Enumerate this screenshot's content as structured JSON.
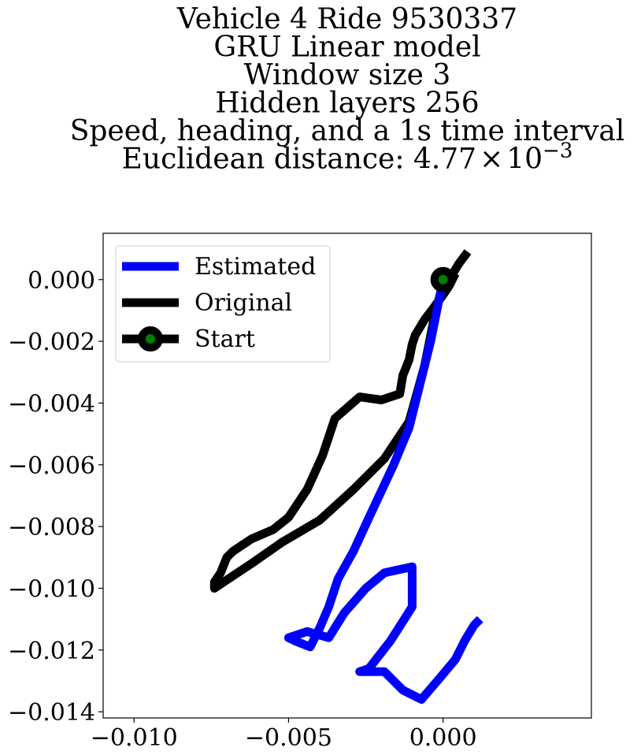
{
  "chart_data": {
    "type": "line",
    "title_lines": [
      "Vehicle 4 Ride 9530337",
      "GRU Linear model",
      "Window size 3",
      "Hidden layers 256",
      "Speed, heading, and a 1s time interval"
    ],
    "title_distance_prefix": "Euclidean distance: 4.77",
    "title_distance_times": "×",
    "title_distance_base": "10",
    "title_distance_exp": "−3",
    "xlim": [
      -0.011,
      0.0048
    ],
    "ylim": [
      -0.0142,
      0.0015
    ],
    "xticks": [
      -0.01,
      -0.005,
      0.0
    ],
    "xtick_labels": [
      "−0.010",
      "−0.005",
      "0.000"
    ],
    "yticks": [
      0.0,
      -0.002,
      -0.004,
      -0.006,
      -0.008,
      -0.01,
      -0.012,
      -0.014
    ],
    "ytick_labels": [
      "0.000",
      "−0.002",
      "−0.004",
      "−0.006",
      "−0.008",
      "−0.010",
      "−0.012",
      "−0.014"
    ],
    "grid": false,
    "legend_placement": "upper-left",
    "series": [
      {
        "name": "Estimated",
        "color": "#0000ff",
        "x": [
          0.0,
          -0.0004,
          -0.0011,
          -0.0016,
          -0.0023,
          -0.0029,
          -0.0034,
          -0.0037,
          -0.004,
          -0.0043,
          -0.0048,
          -0.005,
          -0.0044,
          -0.0037,
          -0.0032,
          -0.0025,
          -0.0019,
          -0.001,
          -0.001,
          -0.0017,
          -0.0024,
          -0.0027,
          -0.0019,
          -0.0013,
          -0.0007,
          -0.0001,
          0.0004,
          0.0007,
          0.001,
          0.0012
        ],
        "y": [
          0.0,
          -0.002,
          -0.0048,
          -0.006,
          -0.0075,
          -0.0088,
          -0.0097,
          -0.0106,
          -0.0113,
          -0.0119,
          -0.0117,
          -0.0116,
          -0.0114,
          -0.0116,
          -0.0108,
          -0.01,
          -0.0095,
          -0.0093,
          -0.0106,
          -0.0117,
          -0.0126,
          -0.0127,
          -0.0127,
          -0.0133,
          -0.0136,
          -0.0129,
          -0.0123,
          -0.0117,
          -0.0112,
          -0.011
        ]
      },
      {
        "name": "Original",
        "color": "#000000",
        "x": [
          0.0008,
          0.0005,
          0.0002,
          -0.0001,
          -0.0003,
          -0.0006,
          -0.0011,
          -0.0019,
          -0.0029,
          -0.004,
          -0.0052,
          -0.0062,
          -0.0071,
          -0.0074,
          -0.0074,
          -0.0072,
          -0.007,
          -0.0068,
          -0.0062,
          -0.0055,
          -0.005,
          -0.0044,
          -0.0039,
          -0.0035,
          -0.0027,
          -0.002,
          -0.0014,
          -0.0013,
          -0.0011,
          -0.001,
          -0.0009,
          -0.0006,
          -0.0003,
          0.0,
          0.0002,
          0.0004
        ],
        "y": [
          0.0009,
          0.0005,
          0.0,
          -0.0005,
          -0.0013,
          -0.0028,
          -0.0046,
          -0.0058,
          -0.0068,
          -0.0078,
          -0.0085,
          -0.0092,
          -0.0098,
          -0.01,
          -0.0098,
          -0.0095,
          -0.009,
          -0.0088,
          -0.0084,
          -0.0081,
          -0.0077,
          -0.0068,
          -0.0057,
          -0.0045,
          -0.0038,
          -0.0039,
          -0.0037,
          -0.0031,
          -0.0026,
          -0.0021,
          -0.0018,
          -0.0013,
          -0.0009,
          -0.0005,
          -0.0002,
          0.0002
        ]
      }
    ],
    "start_marker": {
      "name": "Start",
      "x": 0.0,
      "y": 0.0,
      "edge_color": "#000000",
      "face_color": "#008000"
    }
  }
}
